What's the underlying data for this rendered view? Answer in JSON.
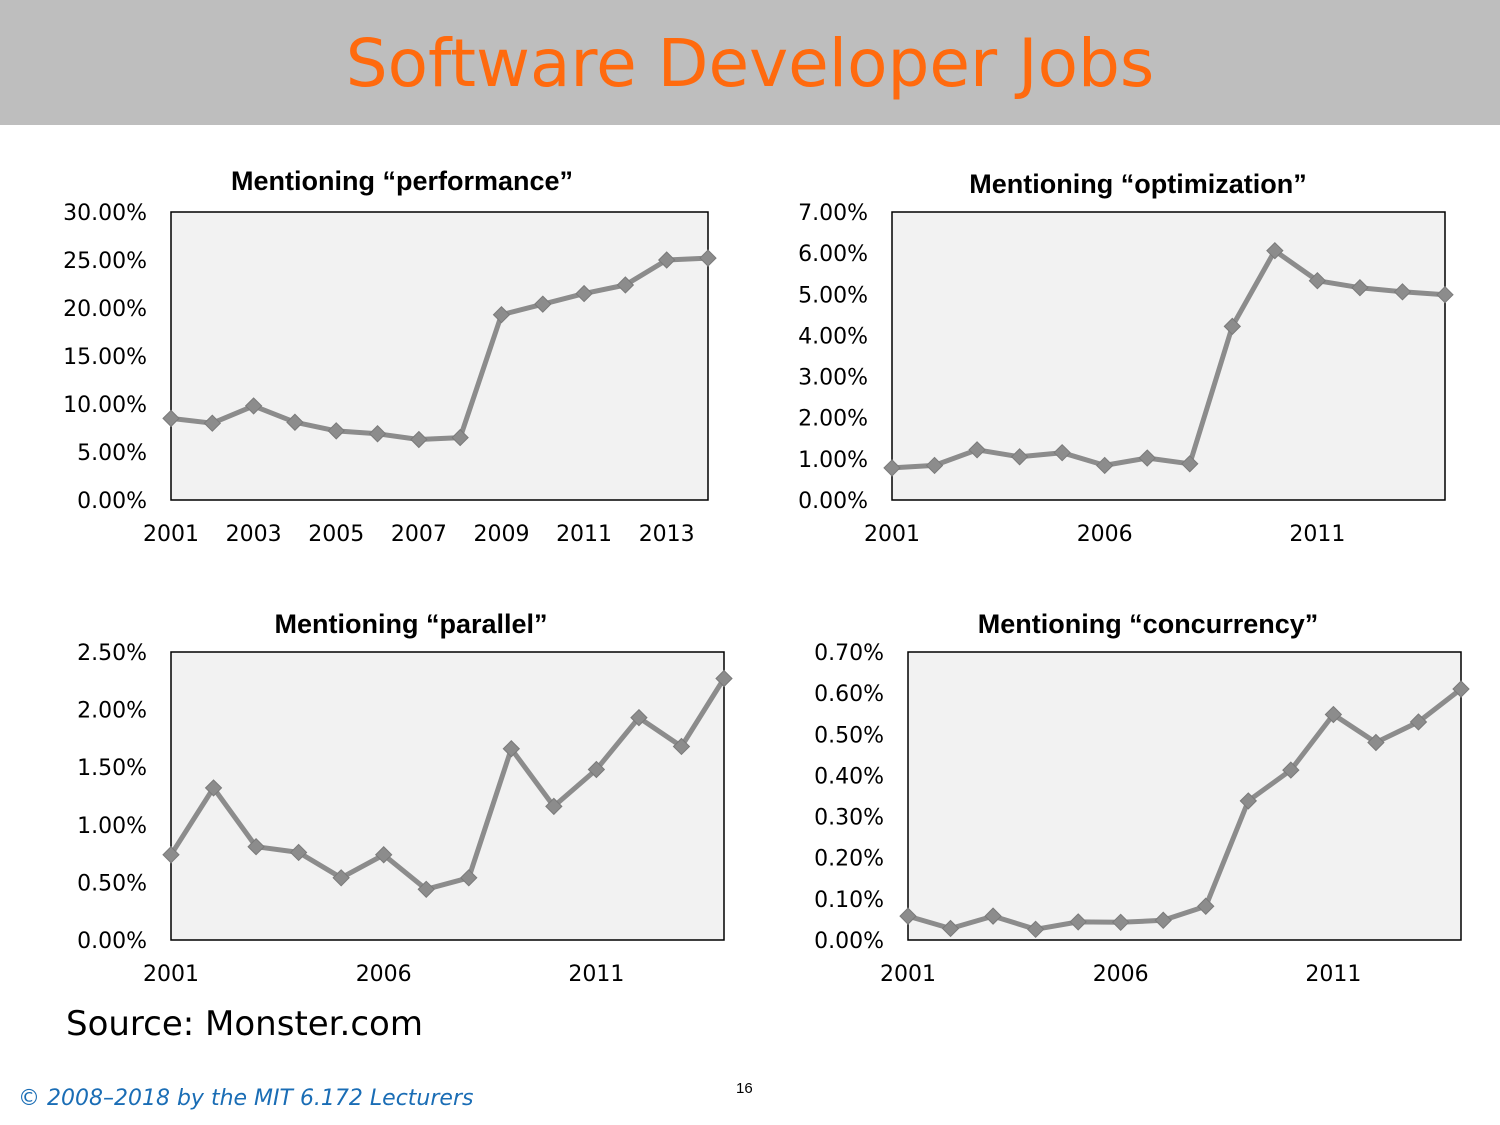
{
  "slide": {
    "title": "Software Developer Jobs",
    "source": "Source: Monster.com",
    "page_number": "16",
    "copyright": "© 2008–2018 by the MIT 6.172 Lecturers",
    "title_color": "#ff6a0e",
    "title_bar_color": "#bebebe",
    "copyright_color": "#1a6db5"
  },
  "chart_style": {
    "line_color": "#8c8c8c",
    "marker_color": "#8c8c8c",
    "plot_background": "#f2f2f2",
    "marker": "diamond"
  },
  "chart_data": [
    {
      "type": "line",
      "title": "Mentioning “performance”",
      "x": [
        2001,
        2002,
        2003,
        2004,
        2005,
        2006,
        2007,
        2008,
        2009,
        2010,
        2011,
        2012,
        2013,
        2014
      ],
      "values": [
        8.5,
        8.0,
        9.8,
        8.1,
        7.2,
        6.9,
        6.3,
        6.5,
        19.3,
        20.4,
        21.5,
        22.4,
        25.0,
        25.2
      ],
      "ylim": [
        0,
        30
      ],
      "yticks": [
        "0.00%",
        "5.00%",
        "10.00%",
        "15.00%",
        "20.00%",
        "25.00%",
        "30.00%"
      ],
      "xticks": [
        "2001",
        "2003",
        "2005",
        "2007",
        "2009",
        "2011",
        "2013"
      ],
      "xlabel": "",
      "ylabel": "",
      "grid": false
    },
    {
      "type": "line",
      "title": "Mentioning “optimization”",
      "x": [
        2001,
        2002,
        2003,
        2004,
        2005,
        2006,
        2007,
        2008,
        2009,
        2010,
        2011,
        2012,
        2013,
        2014
      ],
      "values": [
        0.78,
        0.84,
        1.22,
        1.05,
        1.15,
        0.84,
        1.02,
        0.88,
        4.22,
        6.06,
        5.33,
        5.16,
        5.06,
        4.99
      ],
      "ylim": [
        0,
        7
      ],
      "yticks": [
        "0.00%",
        "1.00%",
        "2.00%",
        "3.00%",
        "4.00%",
        "5.00%",
        "6.00%",
        "7.00%"
      ],
      "xticks": [
        "2001",
        "2006",
        "2011"
      ],
      "xlabel": "",
      "ylabel": "",
      "grid": false
    },
    {
      "type": "line",
      "title": "Mentioning “parallel”",
      "x": [
        2001,
        2002,
        2003,
        2004,
        2005,
        2006,
        2007,
        2008,
        2009,
        2010,
        2011,
        2012,
        2013,
        2014
      ],
      "values": [
        0.74,
        1.32,
        0.81,
        0.76,
        0.54,
        0.74,
        0.44,
        0.54,
        1.66,
        1.16,
        1.48,
        1.93,
        1.68,
        2.27
      ],
      "ylim": [
        0,
        2.5
      ],
      "yticks": [
        "0.00%",
        "0.50%",
        "1.00%",
        "1.50%",
        "2.00%",
        "2.50%"
      ],
      "xticks": [
        "2001",
        "2006",
        "2011"
      ],
      "xlabel": "",
      "ylabel": "",
      "grid": false
    },
    {
      "type": "line",
      "title": "Mentioning “concurrency”",
      "x": [
        2001,
        2002,
        2003,
        2004,
        2005,
        2006,
        2007,
        2008,
        2009,
        2010,
        2011,
        2012,
        2013,
        2014
      ],
      "values": [
        0.058,
        0.028,
        0.058,
        0.026,
        0.044,
        0.043,
        0.048,
        0.082,
        0.338,
        0.413,
        0.548,
        0.48,
        0.53,
        0.61
      ],
      "ylim": [
        0,
        0.7
      ],
      "yticks": [
        "0.00%",
        "0.10%",
        "0.20%",
        "0.30%",
        "0.40%",
        "0.50%",
        "0.60%",
        "0.70%"
      ],
      "xticks": [
        "2001",
        "2006",
        "2011"
      ],
      "xlabel": "",
      "ylabel": "",
      "grid": false
    }
  ]
}
